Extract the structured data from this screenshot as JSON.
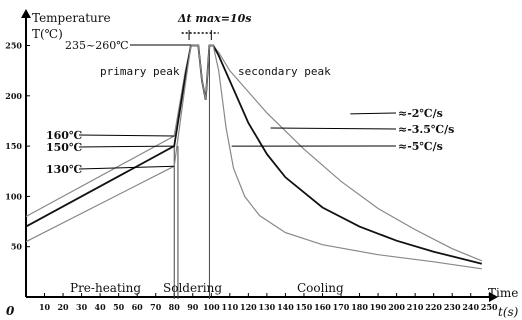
{
  "chart_data": {
    "type": "line",
    "ylabel_title": "Temperature",
    "ylabel_unit": "T(℃)",
    "xlabel_title": "Time",
    "xlabel_unit": "t(s)",
    "origin_label": "0",
    "xlim": [
      0,
      250
    ],
    "ylim": [
      0,
      270
    ],
    "x_ticks": [
      10,
      20,
      30,
      40,
      50,
      60,
      70,
      80,
      90,
      100,
      110,
      120,
      130,
      140,
      150,
      160,
      170,
      180,
      190,
      200,
      210,
      220,
      230,
      240,
      250
    ],
    "y_ticks": [
      50,
      100,
      150,
      200,
      250
    ],
    "series": [
      {
        "name_text": "≈-2℃/s",
        "color": "#888888",
        "points": [
          [
            0,
            80
          ],
          [
            80,
            160
          ],
          [
            86,
            225
          ],
          [
            89,
            250
          ],
          [
            93,
            250
          ],
          [
            95,
            215
          ],
          [
            97,
            196
          ],
          [
            99,
            250
          ],
          [
            101,
            250
          ],
          [
            104,
            243
          ],
          [
            110,
            225
          ],
          [
            130,
            183
          ],
          [
            150,
            147
          ],
          [
            170,
            115
          ],
          [
            190,
            88
          ],
          [
            210,
            67
          ],
          [
            230,
            48
          ],
          [
            246,
            36
          ]
        ]
      },
      {
        "name_text": "≈-3.5℃/s",
        "color": "#111111",
        "points": [
          [
            0,
            70
          ],
          [
            80,
            150
          ],
          [
            86,
            220
          ],
          [
            89,
            250
          ],
          [
            93,
            250
          ],
          [
            95,
            215
          ],
          [
            97,
            196
          ],
          [
            99,
            250
          ],
          [
            101,
            250
          ],
          [
            104,
            240
          ],
          [
            110,
            215
          ],
          [
            120,
            173
          ],
          [
            130,
            142
          ],
          [
            140,
            119
          ],
          [
            160,
            89
          ],
          [
            180,
            70
          ],
          [
            200,
            56
          ],
          [
            220,
            45
          ],
          [
            246,
            33
          ]
        ]
      },
      {
        "name_text": "≈-5℃/s",
        "color": "#888888",
        "points": [
          [
            0,
            55
          ],
          [
            80,
            130
          ],
          [
            86,
            212
          ],
          [
            89,
            250
          ],
          [
            93,
            250
          ],
          [
            95,
            215
          ],
          [
            97,
            196
          ],
          [
            99,
            250
          ],
          [
            101,
            250
          ],
          [
            104,
            225
          ],
          [
            108,
            168
          ],
          [
            112,
            128
          ],
          [
            118,
            100
          ],
          [
            126,
            81
          ],
          [
            140,
            64
          ],
          [
            160,
            52
          ],
          [
            190,
            42
          ],
          [
            220,
            35
          ],
          [
            246,
            28
          ]
        ]
      }
    ],
    "annotations": {
      "delta_t": "Δt max=10s",
      "peak_range": "235~260℃",
      "primary_peak": "primary peak",
      "secondary_peak": "secondary peak",
      "t160": "160℃",
      "t150": "150℃",
      "t130": "130℃"
    },
    "phases": [
      "Pre-heating",
      "Soldering",
      "Cooling"
    ]
  }
}
